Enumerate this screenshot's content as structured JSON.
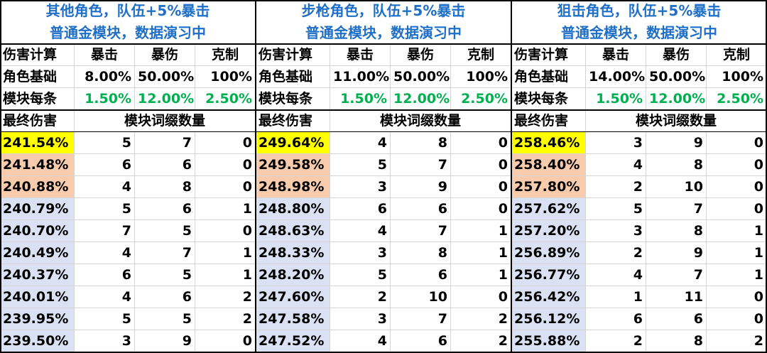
{
  "panels": [
    {
      "title": [
        "其他角色，队伍+5%暴击",
        "普通金模块，数据演习中"
      ],
      "header": [
        "伤害计算",
        "暴击",
        "暴伤",
        "克制"
      ],
      "base": [
        "角色基础",
        "8.00%",
        "50.00%",
        "100%"
      ],
      "module": [
        "模块每条",
        "1.50%",
        "12.00%",
        "2.50%"
      ],
      "result_header": [
        "最终伤害",
        "模块词缀数量"
      ],
      "rows": [
        [
          "241.54%",
          5,
          7,
          0
        ],
        [
          "241.48%",
          6,
          6,
          0
        ],
        [
          "240.88%",
          4,
          8,
          0
        ],
        [
          "240.79%",
          5,
          6,
          1
        ],
        [
          "240.70%",
          7,
          5,
          0
        ],
        [
          "240.49%",
          4,
          7,
          1
        ],
        [
          "240.37%",
          6,
          5,
          1
        ],
        [
          "240.01%",
          4,
          6,
          2
        ],
        [
          "239.95%",
          5,
          5,
          2
        ],
        [
          "239.50%",
          3,
          9,
          0
        ]
      ]
    },
    {
      "title": [
        "步枪角色，队伍+5%暴击",
        "普通金模块，数据演习中"
      ],
      "header": [
        "伤害计算",
        "暴击",
        "暴伤",
        "克制"
      ],
      "base": [
        "角色基础",
        "11.00%",
        "50.00%",
        "100%"
      ],
      "module": [
        "模块每条",
        "1.50%",
        "12.00%",
        "2.50%"
      ],
      "result_header": [
        "最终伤害",
        "模块词缀数量"
      ],
      "rows": [
        [
          "249.64%",
          4,
          8,
          0
        ],
        [
          "249.58%",
          5,
          7,
          0
        ],
        [
          "248.98%",
          3,
          9,
          0
        ],
        [
          "248.80%",
          6,
          6,
          0
        ],
        [
          "248.63%",
          4,
          7,
          1
        ],
        [
          "248.33%",
          3,
          8,
          1
        ],
        [
          "248.20%",
          5,
          6,
          1
        ],
        [
          "247.60%",
          2,
          10,
          0
        ],
        [
          "247.58%",
          3,
          7,
          2
        ],
        [
          "247.52%",
          4,
          6,
          2
        ]
      ]
    },
    {
      "title": [
        "狙击角色，队伍+5%暴击",
        "普通金模块，数据演习中"
      ],
      "header": [
        "伤害计算",
        "暴击",
        "暴伤",
        "克制"
      ],
      "base": [
        "角色基础",
        "14.00%",
        "50.00%",
        "100%"
      ],
      "module": [
        "模块每条",
        "1.50%",
        "12.00%",
        "2.50%"
      ],
      "result_header": [
        "最终伤害",
        "模块词缀数量"
      ],
      "rows": [
        [
          "258.46%",
          3,
          9,
          0
        ],
        [
          "258.40%",
          4,
          8,
          0
        ],
        [
          "257.80%",
          2,
          10,
          0
        ],
        [
          "257.62%",
          5,
          7,
          0
        ],
        [
          "257.20%",
          3,
          8,
          1
        ],
        [
          "256.89%",
          2,
          9,
          1
        ],
        [
          "256.77%",
          4,
          7,
          1
        ],
        [
          "256.42%",
          1,
          11,
          0
        ],
        [
          "256.12%",
          6,
          6,
          0
        ],
        [
          "255.88%",
          2,
          8,
          2
        ]
      ]
    }
  ]
}
